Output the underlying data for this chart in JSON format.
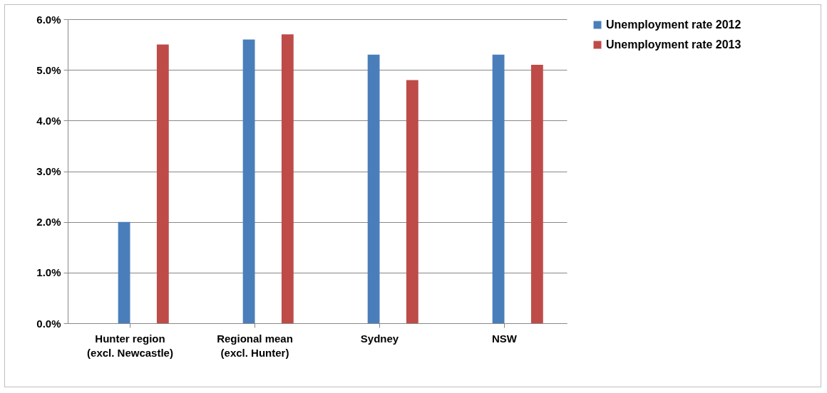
{
  "chart_data": {
    "type": "bar",
    "categories": [
      "Hunter region (excl. Newcastle)",
      "Regional mean (excl. Hunter)",
      "Sydney",
      "NSW"
    ],
    "series": [
      {
        "name": "Unemployment rate 2012",
        "color": "#4a7ebb",
        "values": [
          2.0,
          5.6,
          5.3,
          5.3
        ]
      },
      {
        "name": "Unemployment rate 2013",
        "color": "#be4b48",
        "values": [
          5.5,
          5.7,
          4.8,
          5.1
        ]
      }
    ],
    "ylim": [
      0,
      6
    ],
    "yticks": [
      {
        "value": 0,
        "label": "0.0%"
      },
      {
        "value": 1,
        "label": "1.0%"
      },
      {
        "value": 2,
        "label": "2.0%"
      },
      {
        "value": 3,
        "label": "3.0%"
      },
      {
        "value": 4,
        "label": "4.0%"
      },
      {
        "value": 5,
        "label": "5.0%"
      },
      {
        "value": 6,
        "label": "6.0%"
      }
    ],
    "grid": "y",
    "legend": "right"
  }
}
